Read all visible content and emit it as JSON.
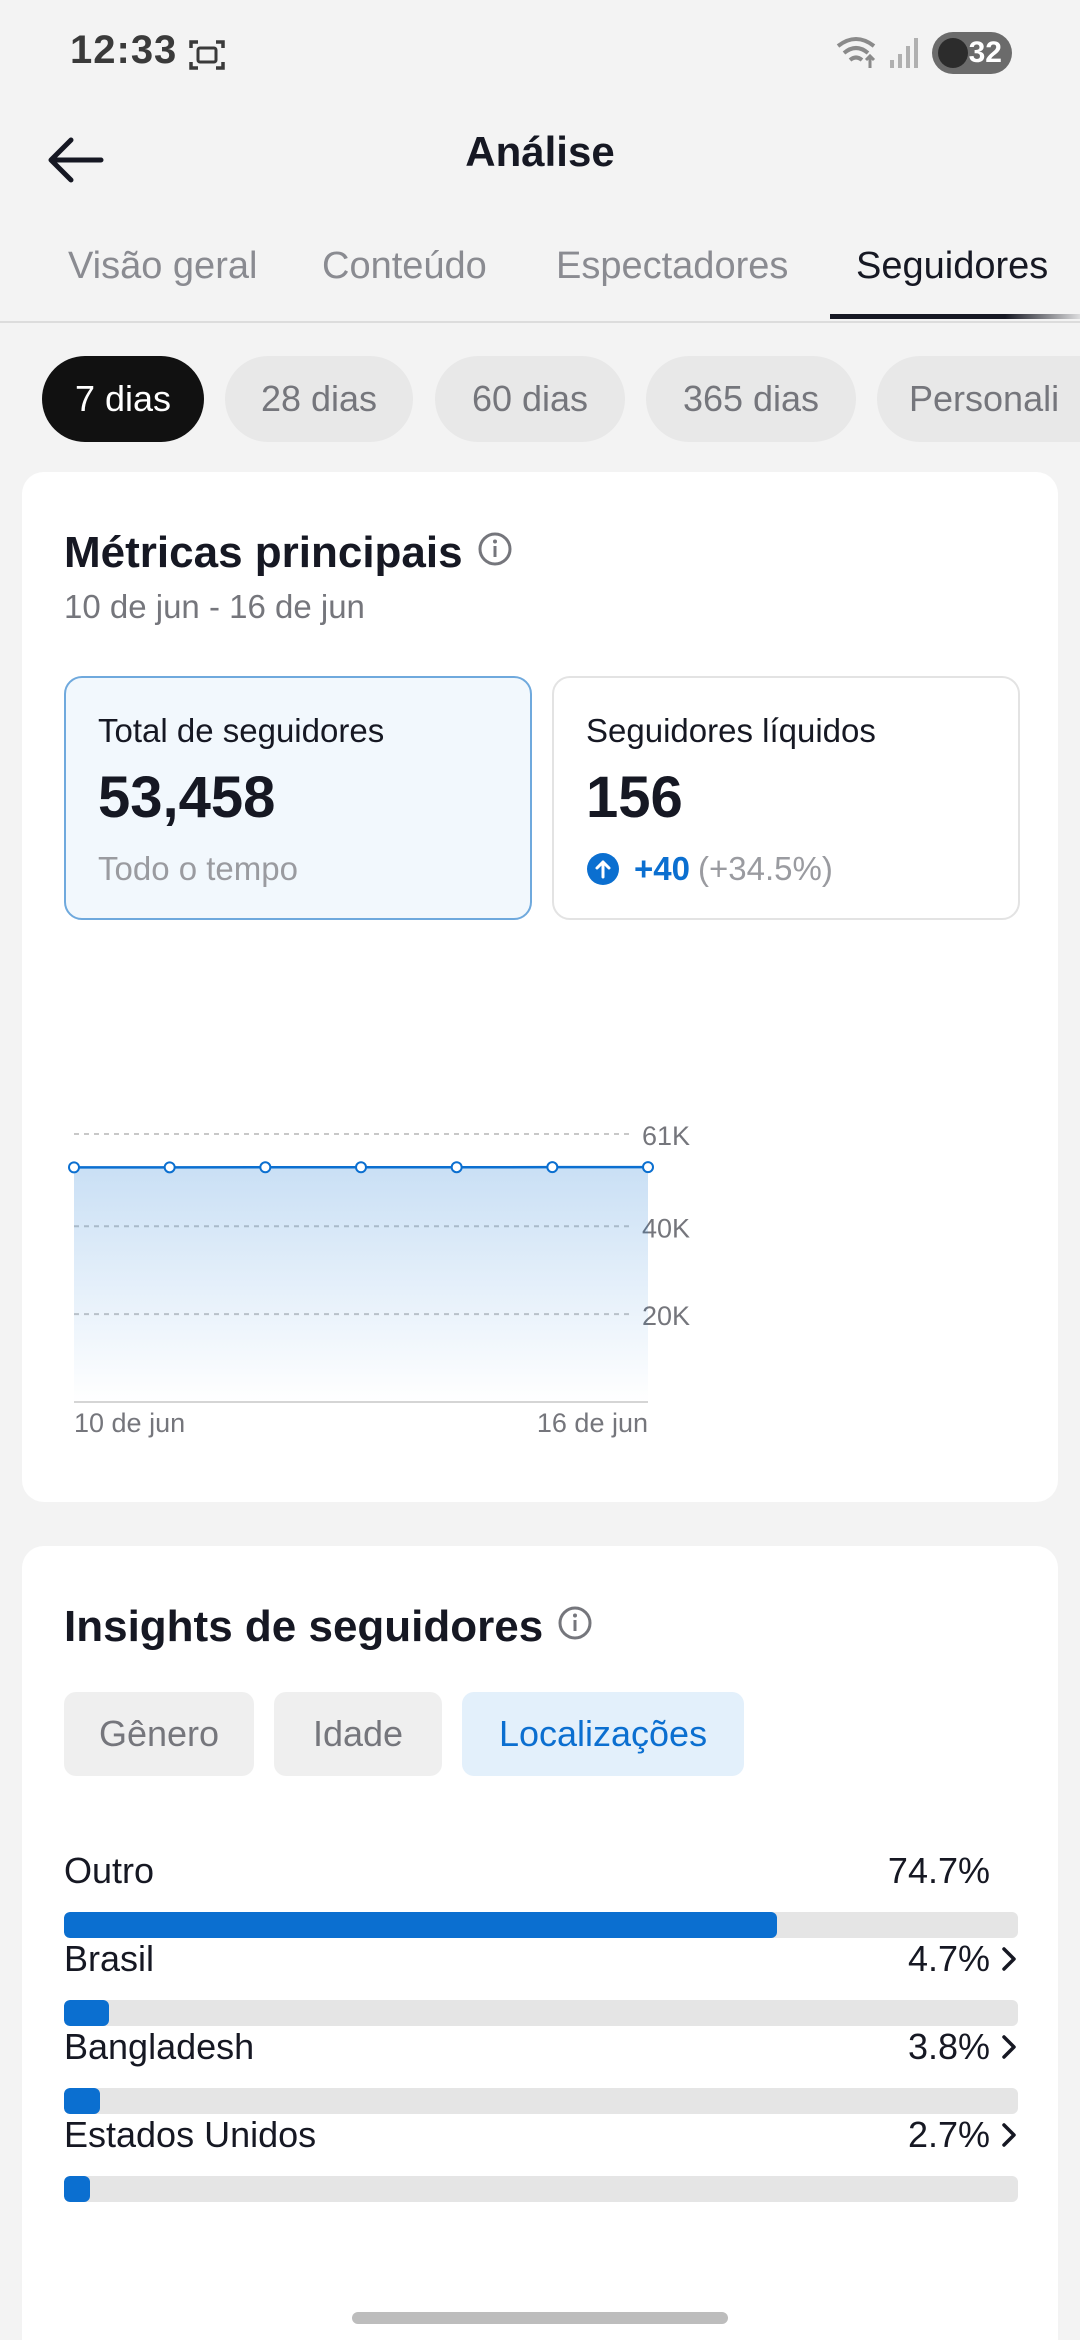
{
  "status_bar": {
    "time": "12:33",
    "battery": "32"
  },
  "header": {
    "title": "Análise"
  },
  "tabs": [
    {
      "label": "Visão geral",
      "active": false
    },
    {
      "label": "Conteúdo",
      "active": false
    },
    {
      "label": "Espectadores",
      "active": false
    },
    {
      "label": "Seguidores",
      "active": true
    }
  ],
  "periods": [
    {
      "label": "7 dias",
      "active": true
    },
    {
      "label": "28 dias",
      "active": false
    },
    {
      "label": "60 dias",
      "active": false
    },
    {
      "label": "365 dias",
      "active": false
    },
    {
      "label": "Personali",
      "active": false
    }
  ],
  "metrics": {
    "title": "Métricas principais",
    "date_range": "10 de jun - 16 de jun",
    "total": {
      "label": "Total de seguidores",
      "value": "53,458",
      "sub": "Todo o tempo"
    },
    "net": {
      "label": "Seguidores líquidos",
      "value": "156",
      "change": "+40",
      "change_pct": "(+34.5%)"
    }
  },
  "chart_data": {
    "type": "area",
    "x": [
      "10 de jun",
      "11 de jun",
      "12 de jun",
      "13 de jun",
      "14 de jun",
      "15 de jun",
      "16 de jun"
    ],
    "values": [
      53400,
      53410,
      53420,
      53430,
      53440,
      53450,
      53458
    ],
    "ylim": [
      0,
      61000
    ],
    "y_ticks": [
      {
        "value": 20000,
        "label": "20K"
      },
      {
        "value": 40000,
        "label": "40K"
      },
      {
        "value": 61000,
        "label": "61K"
      }
    ],
    "x_tick_labels": [
      "10 de jun",
      "16 de jun"
    ],
    "grid": true,
    "color": "#0b6fd0"
  },
  "insights": {
    "title": "Insights de seguidores",
    "segments": [
      {
        "label": "Gênero",
        "active": false
      },
      {
        "label": "Idade",
        "active": false
      },
      {
        "label": "Localizações",
        "active": true
      }
    ],
    "locations": [
      {
        "name": "Outro",
        "pct": "74.7%",
        "value": 74.7,
        "chevron": false
      },
      {
        "name": "Brasil",
        "pct": "4.7%",
        "value": 4.7,
        "chevron": true
      },
      {
        "name": "Bangladesh",
        "pct": "3.8%",
        "value": 3.8,
        "chevron": true
      },
      {
        "name": "Estados Unidos",
        "pct": "2.7%",
        "value": 2.7,
        "chevron": true
      }
    ]
  },
  "colors": {
    "accent": "#0b6fd0",
    "text": "#161823",
    "muted": "#75767c"
  }
}
